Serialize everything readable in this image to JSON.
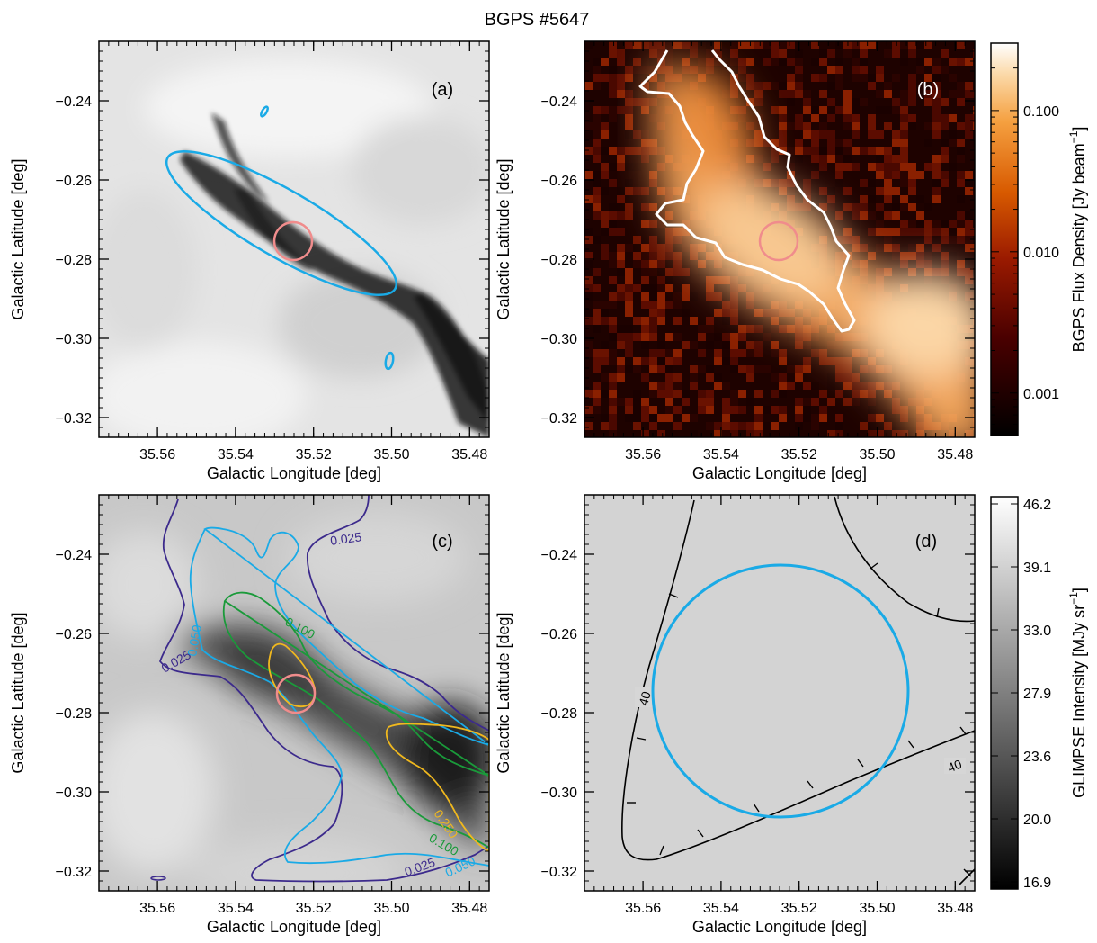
{
  "title": "BGPS #5647",
  "chart_data": [
    {
      "panel": "a",
      "type": "heatmap",
      "label": "(a)",
      "xlabel": "Galactic Longitude [deg]",
      "ylabel": "Galactic Latitude [deg]",
      "xlim": [
        35.575,
        35.475
      ],
      "ylim": [
        -0.325,
        -0.225
      ],
      "xticks": [
        35.56,
        35.54,
        35.52,
        35.5,
        35.48
      ],
      "xtick_labels": [
        "35.56",
        "35.54",
        "35.52",
        "35.50",
        "35.48"
      ],
      "yticks": [
        -0.24,
        -0.26,
        -0.28,
        -0.3,
        -0.32
      ],
      "ytick_labels": [
        "−0.24",
        "−0.26",
        "−0.28",
        "−0.30",
        "−0.32"
      ],
      "colormap": "gray",
      "overlays": [
        {
          "shape": "ellipse",
          "color": "#1aaae6",
          "center": [
            35.5255,
            -0.2735
          ],
          "semi_major_deg": 0.034,
          "semi_minor_deg": 0.0085,
          "angle_deg": -30
        },
        {
          "shape": "ellipse",
          "color": "#1aaae6",
          "center": [
            35.5315,
            -0.2386
          ],
          "semi_major_deg": 0.0015,
          "semi_minor_deg": 0.0007,
          "angle_deg": 60
        },
        {
          "shape": "ellipse",
          "color": "#1aaae6",
          "center": [
            35.4975,
            -0.3054
          ],
          "semi_major_deg": 0.0024,
          "semi_minor_deg": 0.0011,
          "angle_deg": 80
        },
        {
          "shape": "circle",
          "color": "#f08c8c",
          "center": [
            35.5245,
            -0.2735
          ],
          "radius_deg": 0.005
        }
      ]
    },
    {
      "panel": "b",
      "type": "heatmap",
      "label": "(b)",
      "xlabel": "Galactic Longitude [deg]",
      "ylabel": "Galactic Latitude [deg]",
      "xlim": [
        35.575,
        35.475
      ],
      "ylim": [
        -0.325,
        -0.225
      ],
      "xticks": [
        35.56,
        35.54,
        35.52,
        35.5,
        35.48
      ],
      "xtick_labels": [
        "35.56",
        "35.54",
        "35.52",
        "35.50",
        "35.48"
      ],
      "yticks": [
        -0.24,
        -0.26,
        -0.28,
        -0.3,
        -0.32
      ],
      "ytick_labels": [
        "−0.24",
        "−0.26",
        "−0.28",
        "−0.30",
        "−0.32"
      ],
      "colormap": "heat",
      "colorbar": {
        "label": "BGPS Flux Density  [Jy beam",
        "label_sup": "−1",
        "label_end": "]",
        "scale": "log",
        "tick_values": [
          0.1,
          0.01,
          0.001
        ],
        "tick_labels": [
          "0.100",
          "0.010",
          "0.001"
        ],
        "range": [
          0.0005,
          0.3
        ]
      },
      "overlays": [
        {
          "shape": "polygon",
          "color": "#ffffff",
          "description": "BGPS source boundary"
        },
        {
          "shape": "circle",
          "color": "#f08c8c",
          "center": [
            35.5245,
            -0.2735
          ],
          "radius_deg": 0.005
        }
      ]
    },
    {
      "panel": "c",
      "type": "heatmap",
      "label": "(c)",
      "xlabel": "Galactic Longitude [deg]",
      "ylabel": "Galactic Latitude [deg]",
      "xlim": [
        35.575,
        35.475
      ],
      "ylim": [
        -0.325,
        -0.225
      ],
      "xticks": [
        35.56,
        35.54,
        35.52,
        35.5,
        35.48
      ],
      "xtick_labels": [
        "35.56",
        "35.54",
        "35.52",
        "35.50",
        "35.48"
      ],
      "yticks": [
        -0.24,
        -0.26,
        -0.28,
        -0.3,
        -0.32
      ],
      "ytick_labels": [
        "−0.24",
        "−0.26",
        "−0.28",
        "−0.30",
        "−0.32"
      ],
      "colormap": "gray",
      "contours": [
        {
          "level": "0.025",
          "color": "#3c2a8c"
        },
        {
          "level": "0.050",
          "color": "#1aaae6"
        },
        {
          "level": "0.100",
          "color": "#1a9a3a"
        },
        {
          "level": "0.250",
          "color": "#f0b81e"
        }
      ],
      "overlays": [
        {
          "shape": "circle",
          "color": "#f08c8c",
          "center": [
            35.5245,
            -0.2735
          ],
          "radius_deg": 0.005
        }
      ]
    },
    {
      "panel": "d",
      "type": "heatmap",
      "label": "(d)",
      "xlabel": "Galactic Longitude [deg]",
      "ylabel": "Galactic Latitude [deg]",
      "xlim": [
        35.575,
        35.475
      ],
      "ylim": [
        -0.325,
        -0.225
      ],
      "xticks": [
        35.56,
        35.54,
        35.52,
        35.5,
        35.48
      ],
      "xtick_labels": [
        "35.56",
        "35.54",
        "35.52",
        "35.50",
        "35.48"
      ],
      "yticks": [
        -0.24,
        -0.26,
        -0.28,
        -0.3,
        -0.32
      ],
      "ytick_labels": [
        "−0.24",
        "−0.26",
        "−0.28",
        "−0.30",
        "−0.32"
      ],
      "colormap": "gray",
      "contour_labels": [
        "40",
        "40"
      ],
      "colorbar": {
        "label": "GLIMPSE Intensity  [MJy sr",
        "label_sup": "−1",
        "label_end": "]",
        "scale": "linear",
        "tick_values": [
          46.2,
          39.1,
          33.0,
          27.9,
          23.6,
          20.0,
          16.9
        ],
        "tick_labels": [
          "46.2",
          "39.1",
          "33.0",
          "27.9",
          "23.6",
          "20.0",
          "16.9"
        ],
        "range": [
          16.9,
          46.2
        ]
      },
      "overlays": [
        {
          "shape": "circle",
          "color": "#1aaae6",
          "center": [
            35.5262,
            -0.2742
          ],
          "radius_deg": 0.0325
        }
      ]
    }
  ]
}
